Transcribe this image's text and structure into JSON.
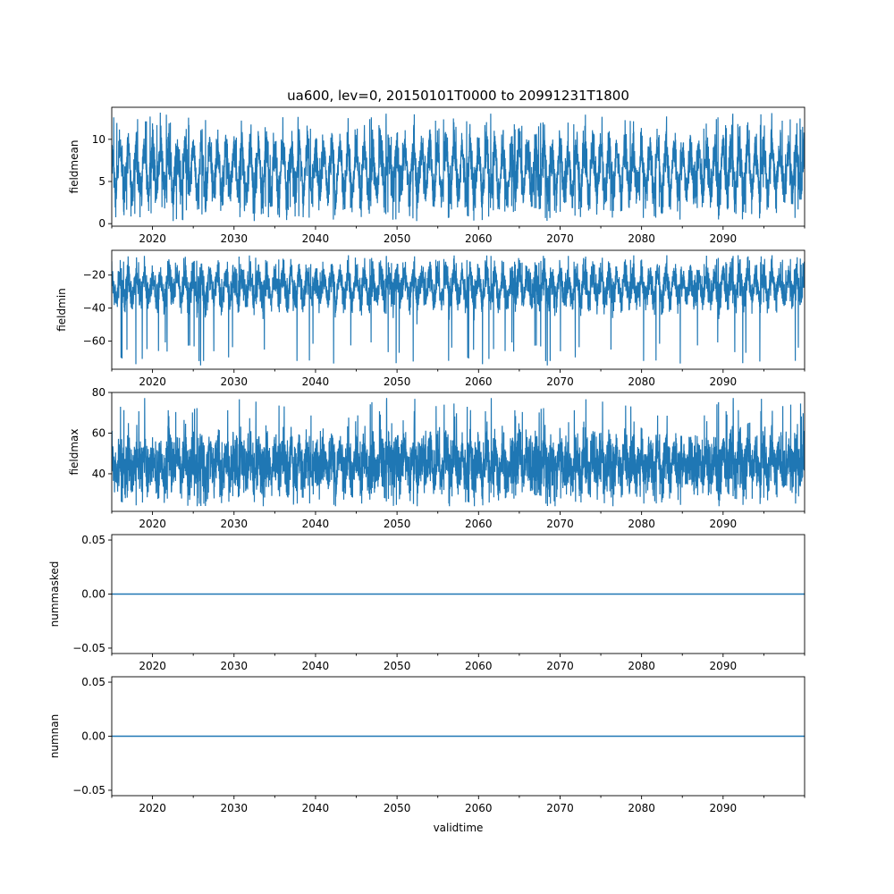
{
  "chart_data": [
    {
      "type": "line",
      "title": "ua600, lev=0, 20150101T0000 to 20991231T1800",
      "xlabel": "",
      "ylabel": "fieldmean",
      "xlim": [
        2015.0,
        2100.0
      ],
      "ylim": [
        -0.3,
        13.8
      ],
      "yticks": [
        0,
        5,
        10
      ],
      "ytick_labels": [
        "0",
        "5",
        "10"
      ],
      "xticks": [
        2020,
        2030,
        2040,
        2050,
        2060,
        2070,
        2080,
        2090
      ],
      "xtick_labels": [
        "2020",
        "2030",
        "2040",
        "2050",
        "2060",
        "2070",
        "2080",
        "2090"
      ],
      "series_profile": {
        "center": 6.3,
        "seasonal_amplitude": 2.6,
        "noise": 1.6,
        "low_extreme": 0.3,
        "high_extreme": 13.2
      },
      "color": "#1f77b4"
    },
    {
      "type": "line",
      "ylabel": "fieldmin",
      "xlim": [
        2015.0,
        2100.0
      ],
      "ylim": [
        -77.0,
        -5.0
      ],
      "yticks": [
        -20,
        -40,
        -60
      ],
      "ytick_labels": [
        "−20",
        "−40",
        "−60"
      ],
      "xticks": [
        2020,
        2030,
        2040,
        2050,
        2060,
        2070,
        2080,
        2090
      ],
      "xtick_labels": [
        "2020",
        "2030",
        "2040",
        "2050",
        "2060",
        "2070",
        "2080",
        "2090"
      ],
      "series_profile": {
        "center": -27,
        "seasonal_amplitude": 7,
        "noise": 6,
        "low_extreme": -75,
        "high_extreme": -8
      },
      "color": "#1f77b4"
    },
    {
      "type": "line",
      "ylabel": "fieldmax",
      "xlim": [
        2015.0,
        2100.0
      ],
      "ylim": [
        21.5,
        80.0
      ],
      "yticks": [
        40,
        60,
        80
      ],
      "ytick_labels": [
        "40",
        "60",
        "80"
      ],
      "xticks": [
        2020,
        2030,
        2040,
        2050,
        2060,
        2070,
        2080,
        2090
      ],
      "xtick_labels": [
        "2020",
        "2030",
        "2040",
        "2050",
        "2060",
        "2070",
        "2080",
        "2090"
      ],
      "series_profile": {
        "center": 45,
        "seasonal_amplitude": 5,
        "noise": 8,
        "low_extreme": 24,
        "high_extreme": 78
      },
      "color": "#1f77b4"
    },
    {
      "type": "line",
      "ylabel": "nummasked",
      "xlim": [
        2015.0,
        2100.0
      ],
      "ylim": [
        -0.055,
        0.055
      ],
      "yticks": [
        0.05,
        0.0,
        -0.05
      ],
      "ytick_labels": [
        "0.05",
        "0.00",
        "−0.05"
      ],
      "xticks": [
        2020,
        2030,
        2040,
        2050,
        2060,
        2070,
        2080,
        2090
      ],
      "xtick_labels": [
        "2020",
        "2030",
        "2040",
        "2050",
        "2060",
        "2070",
        "2080",
        "2090"
      ],
      "constant_value": 0.0,
      "color": "#1f77b4"
    },
    {
      "type": "line",
      "xlabel": "validtime",
      "ylabel": "numnan",
      "xlim": [
        2015.0,
        2100.0
      ],
      "ylim": [
        -0.055,
        0.055
      ],
      "yticks": [
        0.05,
        0.0,
        -0.05
      ],
      "ytick_labels": [
        "0.05",
        "0.00",
        "−0.05"
      ],
      "xticks": [
        2020,
        2030,
        2040,
        2050,
        2060,
        2070,
        2080,
        2090
      ],
      "xtick_labels": [
        "2020",
        "2030",
        "2040",
        "2050",
        "2060",
        "2070",
        "2080",
        "2090"
      ],
      "constant_value": 0.0,
      "color": "#1f77b4"
    }
  ]
}
